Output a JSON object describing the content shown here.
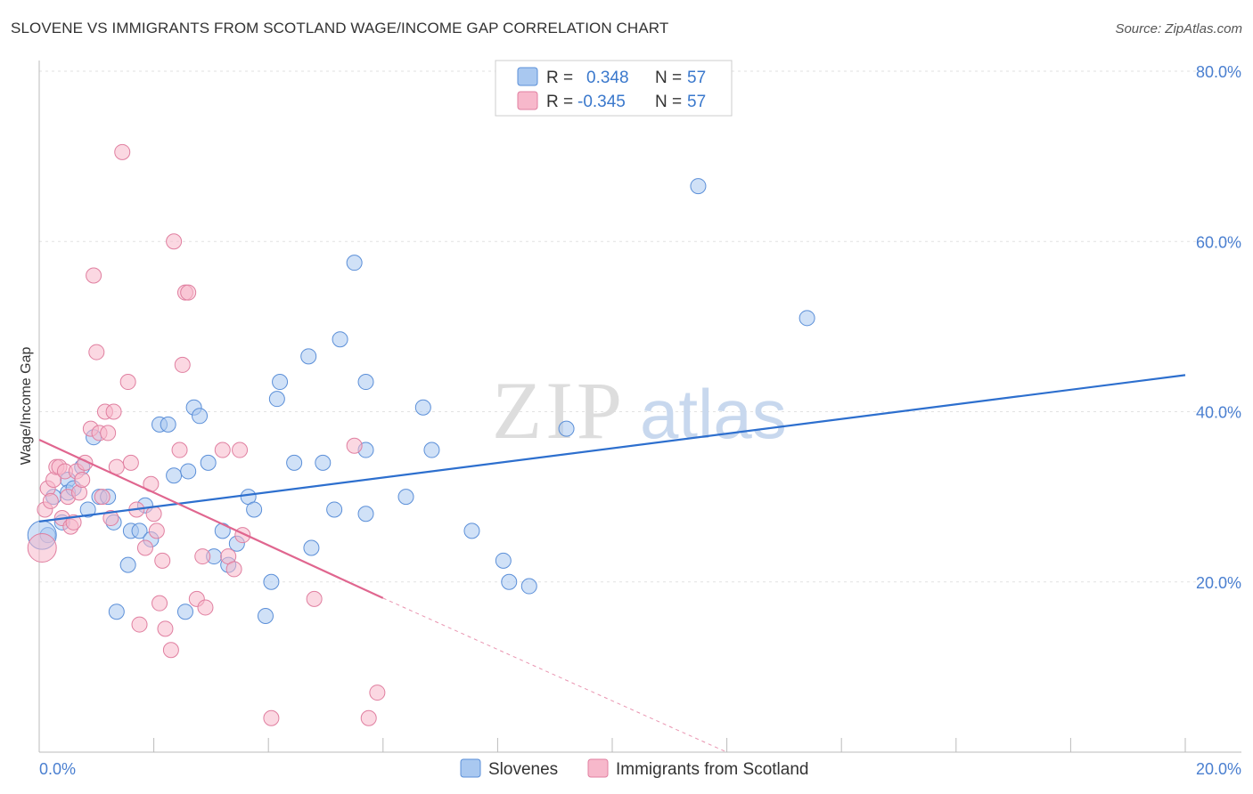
{
  "title": "SLOVENE VS IMMIGRANTS FROM SCOTLAND WAGE/INCOME GAP CORRELATION CHART",
  "source": "Source: ZipAtlas.com",
  "watermark": {
    "zip": "ZIP",
    "atlas": "atlas"
  },
  "legend_stats": [
    {
      "r_label": "R =",
      "r_value": "0.348",
      "n_label": "N =",
      "n_value": "57",
      "color": "#a9c8f0",
      "edge": "#5b8fd8"
    },
    {
      "r_label": "R =",
      "r_value": "-0.345",
      "n_label": "N =",
      "n_value": "57",
      "color": "#f7b8cb",
      "edge": "#e07fa0"
    }
  ],
  "bottom_legend": [
    {
      "label": "Slovenes",
      "color": "#a9c8f0",
      "edge": "#5b8fd8"
    },
    {
      "label": "Immigrants from Scotland",
      "color": "#f7b8cb",
      "edge": "#e07fa0"
    }
  ],
  "chart_data": {
    "type": "scatter",
    "title": "SLOVENE VS IMMIGRANTS FROM SCOTLAND WAGE/INCOME GAP CORRELATION CHART",
    "xlabel": "",
    "ylabel": "Wage/Income Gap",
    "xlim": [
      0,
      20
    ],
    "ylim": [
      0,
      80
    ],
    "x_tick_labels": [
      "0.0%",
      "20.0%"
    ],
    "y_ticks": [
      20,
      40,
      60,
      80
    ],
    "y_tick_labels": [
      "20.0%",
      "40.0%",
      "60.0%",
      "80.0%"
    ],
    "grid": true,
    "series": [
      {
        "name": "Slovenes",
        "color": "#a9c8f0",
        "edge": "#5b8fd8",
        "trend": {
          "x": [
            0,
            20
          ],
          "y": [
            27.1,
            44.3
          ],
          "color": "#2d6fce"
        },
        "points": [
          [
            0.15,
            25.5
          ],
          [
            0.25,
            30.0
          ],
          [
            0.4,
            27.0
          ],
          [
            0.5,
            32.0
          ],
          [
            0.5,
            30.5
          ],
          [
            0.6,
            31.0
          ],
          [
            0.75,
            33.5
          ],
          [
            0.85,
            28.5
          ],
          [
            0.95,
            37.0
          ],
          [
            1.05,
            30.0
          ],
          [
            1.2,
            30.0
          ],
          [
            1.3,
            27.0
          ],
          [
            1.35,
            16.5
          ],
          [
            1.55,
            22.0
          ],
          [
            1.6,
            26.0
          ],
          [
            1.75,
            26.0
          ],
          [
            1.85,
            29.0
          ],
          [
            1.95,
            25.0
          ],
          [
            2.1,
            38.5
          ],
          [
            2.25,
            38.5
          ],
          [
            2.35,
            32.5
          ],
          [
            2.55,
            16.5
          ],
          [
            2.6,
            33.0
          ],
          [
            2.7,
            40.5
          ],
          [
            2.8,
            39.5
          ],
          [
            2.95,
            34.0
          ],
          [
            3.05,
            23.0
          ],
          [
            3.2,
            26.0
          ],
          [
            3.3,
            22.0
          ],
          [
            3.45,
            24.5
          ],
          [
            3.65,
            30.0
          ],
          [
            3.75,
            28.5
          ],
          [
            3.95,
            16.0
          ],
          [
            4.05,
            20.0
          ],
          [
            4.15,
            41.5
          ],
          [
            4.2,
            43.5
          ],
          [
            4.45,
            34.0
          ],
          [
            4.7,
            46.5
          ],
          [
            4.75,
            24.0
          ],
          [
            4.95,
            34.0
          ],
          [
            5.15,
            28.5
          ],
          [
            5.25,
            48.5
          ],
          [
            5.5,
            57.5
          ],
          [
            5.7,
            28.0
          ],
          [
            5.7,
            43.5
          ],
          [
            5.7,
            35.5
          ],
          [
            6.4,
            30.0
          ],
          [
            6.7,
            40.5
          ],
          [
            6.85,
            35.5
          ],
          [
            7.55,
            26.0
          ],
          [
            8.1,
            22.5
          ],
          [
            8.2,
            20.0
          ],
          [
            8.55,
            19.5
          ],
          [
            9.2,
            38.0
          ],
          [
            11.5,
            66.5
          ],
          [
            13.4,
            51.0
          ],
          [
            0.05,
            25.5
          ]
        ]
      },
      {
        "name": "Immigrants from Scotland",
        "color": "#f7b8cb",
        "edge": "#e07fa0",
        "trend": {
          "x": [
            0,
            6.0
          ],
          "y": [
            36.7,
            18.1
          ],
          "color": "#e0668f",
          "dashed_x": [
            6.0,
            12.0
          ],
          "dashed_y": [
            18.1,
            0.0
          ]
        },
        "points": [
          [
            0.05,
            24.0
          ],
          [
            0.1,
            28.5
          ],
          [
            0.15,
            31.0
          ],
          [
            0.2,
            29.5
          ],
          [
            0.25,
            32.0
          ],
          [
            0.3,
            33.5
          ],
          [
            0.35,
            33.5
          ],
          [
            0.4,
            27.5
          ],
          [
            0.45,
            33.0
          ],
          [
            0.5,
            30.0
          ],
          [
            0.55,
            26.5
          ],
          [
            0.6,
            27.0
          ],
          [
            0.65,
            33.0
          ],
          [
            0.7,
            30.5
          ],
          [
            0.75,
            32.0
          ],
          [
            0.8,
            34.0
          ],
          [
            0.9,
            38.0
          ],
          [
            0.95,
            56.0
          ],
          [
            1.0,
            47.0
          ],
          [
            1.05,
            37.5
          ],
          [
            1.1,
            30.0
          ],
          [
            1.15,
            40.0
          ],
          [
            1.2,
            37.5
          ],
          [
            1.25,
            27.5
          ],
          [
            1.3,
            40.0
          ],
          [
            1.35,
            33.5
          ],
          [
            1.45,
            70.5
          ],
          [
            1.55,
            43.5
          ],
          [
            1.6,
            34.0
          ],
          [
            1.7,
            28.5
          ],
          [
            1.75,
            15.0
          ],
          [
            1.85,
            24.0
          ],
          [
            1.95,
            31.5
          ],
          [
            2.0,
            28.0
          ],
          [
            2.05,
            26.0
          ],
          [
            2.1,
            17.5
          ],
          [
            2.2,
            14.5
          ],
          [
            2.3,
            12.0
          ],
          [
            2.35,
            60.0
          ],
          [
            2.45,
            35.5
          ],
          [
            2.5,
            45.5
          ],
          [
            2.55,
            54.0
          ],
          [
            2.6,
            54.0
          ],
          [
            2.75,
            18.0
          ],
          [
            2.85,
            23.0
          ],
          [
            3.2,
            35.5
          ],
          [
            3.3,
            23.0
          ],
          [
            3.4,
            21.5
          ],
          [
            3.5,
            35.5
          ],
          [
            3.55,
            25.5
          ],
          [
            4.05,
            4.0
          ],
          [
            4.8,
            18.0
          ],
          [
            5.5,
            36.0
          ],
          [
            5.75,
            4.0
          ],
          [
            5.9,
            7.0
          ],
          [
            2.9,
            17.0
          ],
          [
            2.15,
            22.5
          ]
        ]
      }
    ]
  }
}
